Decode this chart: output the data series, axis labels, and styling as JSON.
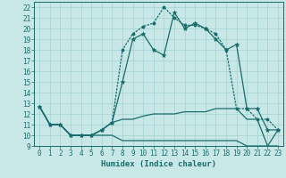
{
  "xlabel": "Humidex (Indice chaleur)",
  "xlim": [
    -0.5,
    23.5
  ],
  "ylim": [
    9,
    22.5
  ],
  "xticks": [
    0,
    1,
    2,
    3,
    4,
    5,
    6,
    7,
    8,
    9,
    10,
    11,
    12,
    13,
    14,
    15,
    16,
    17,
    18,
    19,
    20,
    21,
    22,
    23
  ],
  "yticks": [
    9,
    10,
    11,
    12,
    13,
    14,
    15,
    16,
    17,
    18,
    19,
    20,
    21,
    22
  ],
  "background_color": "#c8e8e8",
  "grid_color": "#aad4d4",
  "line_color": "#1a6b6b",
  "line1_x": [
    0,
    1,
    2,
    3,
    4,
    5,
    6,
    7,
    8,
    9,
    10,
    11,
    12,
    13,
    14,
    15,
    16,
    17,
    18,
    19,
    20,
    21,
    22,
    23
  ],
  "line1_y": [
    12.7,
    11,
    11,
    10,
    10,
    10,
    10.5,
    11.2,
    15,
    19,
    19.5,
    18,
    17.5,
    21.5,
    20,
    20.5,
    20,
    19,
    18,
    18.5,
    12.5,
    12.5,
    10.5,
    10.5
  ],
  "line2_x": [
    0,
    1,
    2,
    3,
    4,
    5,
    6,
    7,
    8,
    9,
    10,
    11,
    12,
    13,
    14,
    15,
    16,
    17,
    18,
    19,
    20,
    21,
    22,
    23
  ],
  "line2_y": [
    12.7,
    11,
    11,
    10,
    10,
    10,
    10.5,
    11.2,
    18,
    19.5,
    20.2,
    20.5,
    22,
    21,
    20.3,
    20.3,
    20,
    19.5,
    18,
    12.5,
    12.5,
    11.5,
    11.5,
    10.5
  ],
  "line3_x": [
    0,
    1,
    2,
    3,
    4,
    5,
    6,
    7,
    8,
    9,
    10,
    11,
    12,
    13,
    14,
    15,
    16,
    17,
    18,
    19,
    20,
    21,
    22,
    23
  ],
  "line3_y": [
    12.7,
    11,
    11,
    10,
    10,
    10,
    10.5,
    11.2,
    11.5,
    11.5,
    11.8,
    12,
    12,
    12,
    12.2,
    12.2,
    12.2,
    12.5,
    12.5,
    12.5,
    11.5,
    11.5,
    9,
    10.5
  ],
  "line4_x": [
    0,
    1,
    2,
    3,
    4,
    5,
    6,
    7,
    8,
    9,
    10,
    11,
    12,
    13,
    14,
    15,
    16,
    17,
    18,
    19,
    20,
    21,
    22,
    23
  ],
  "line4_y": [
    12.7,
    11,
    11,
    10,
    10,
    10,
    10,
    10,
    9.5,
    9.5,
    9.5,
    9.5,
    9.5,
    9.5,
    9.5,
    9.5,
    9.5,
    9.5,
    9.5,
    9.5,
    9,
    9,
    9,
    9
  ]
}
